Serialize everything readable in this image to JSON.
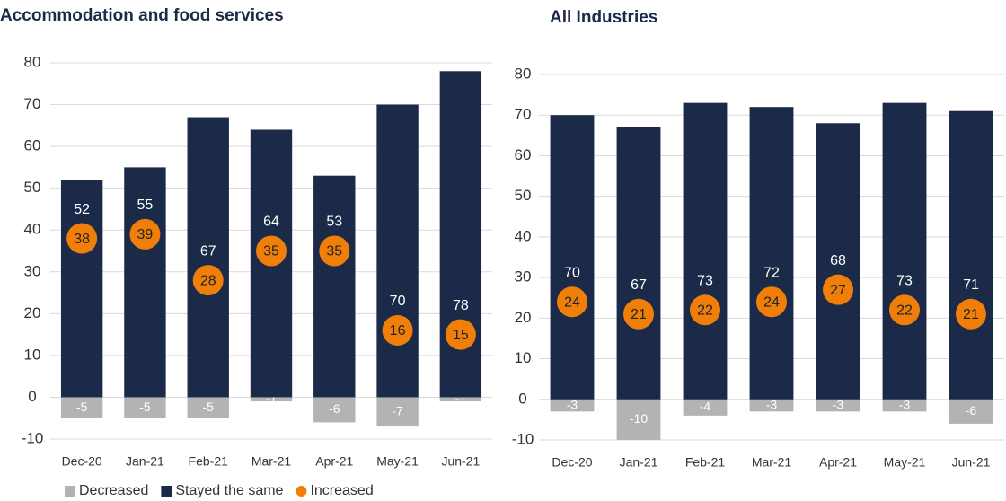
{
  "chart_data": [
    {
      "type": "bar",
      "title": "Accommodation and food services",
      "categories": [
        "Dec-20",
        "Jan-21",
        "Feb-21",
        "Mar-21",
        "Apr-21",
        "May-21",
        "Jun-21"
      ],
      "series": [
        {
          "name": "Decreased",
          "color": "#b3b3b3",
          "values": [
            -5,
            -5,
            -5,
            -1,
            -6,
            -7,
            -1
          ]
        },
        {
          "name": "Stayed the same",
          "color": "#1b2a49",
          "values": [
            52,
            55,
            67,
            64,
            53,
            70,
            78
          ]
        },
        {
          "name": "Increased",
          "color": "#f07f09",
          "values": [
            38,
            39,
            28,
            35,
            35,
            16,
            15
          ]
        }
      ],
      "ylim": [
        -10,
        80
      ],
      "yticks": [
        -10,
        0,
        10,
        20,
        30,
        40,
        50,
        60,
        70,
        80
      ],
      "grid": true,
      "legend": "bottom-left"
    },
    {
      "type": "bar",
      "title": "All Industries",
      "categories": [
        "Dec-20",
        "Jan-21",
        "Feb-21",
        "Mar-21",
        "Apr-21",
        "May-21",
        "Jun-21"
      ],
      "series": [
        {
          "color": "#b3b3b3",
          "values": [
            -3,
            -10,
            -4,
            -3,
            -3,
            -3,
            -6
          ]
        },
        {
          "color": "#1b2a49",
          "values": [
            70,
            67,
            73,
            72,
            68,
            73,
            71
          ]
        },
        {
          "color": "#f07f09",
          "values": [
            24,
            21,
            22,
            24,
            27,
            22,
            21
          ]
        }
      ],
      "ylim": [
        -10,
        80
      ],
      "yticks": [
        -10,
        0,
        10,
        20,
        30,
        40,
        50,
        60,
        70,
        80
      ],
      "grid": true
    }
  ]
}
